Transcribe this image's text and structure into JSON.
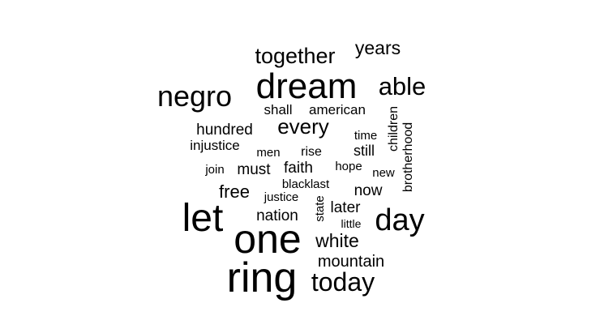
{
  "chart_data": {
    "type": "wordcloud",
    "color": "#000000",
    "words": [
      {
        "text": "ring",
        "weight": 52
      },
      {
        "text": "one",
        "weight": 50
      },
      {
        "text": "let",
        "weight": 48
      },
      {
        "text": "dream",
        "weight": 44
      },
      {
        "text": "day",
        "weight": 38
      },
      {
        "text": "negro",
        "weight": 36
      },
      {
        "text": "today",
        "weight": 32
      },
      {
        "text": "able",
        "weight": 31
      },
      {
        "text": "together",
        "weight": 27
      },
      {
        "text": "every",
        "weight": 26
      },
      {
        "text": "years",
        "weight": 23
      },
      {
        "text": "white",
        "weight": 23
      },
      {
        "text": "free",
        "weight": 22
      },
      {
        "text": "mountain",
        "weight": 20
      },
      {
        "text": "hundred",
        "weight": 19
      },
      {
        "text": "nation",
        "weight": 19
      },
      {
        "text": "must",
        "weight": 19
      },
      {
        "text": "faith",
        "weight": 19
      },
      {
        "text": "now",
        "weight": 19
      },
      {
        "text": "later",
        "weight": 19
      },
      {
        "text": "still",
        "weight": 18
      },
      {
        "text": "shall",
        "weight": 17
      },
      {
        "text": "american",
        "weight": 17
      },
      {
        "text": "injustice",
        "weight": 17
      },
      {
        "text": "brotherhood",
        "weight": 16
      },
      {
        "text": "children",
        "weight": 16
      },
      {
        "text": "rise",
        "weight": 16
      },
      {
        "text": "men",
        "weight": 15
      },
      {
        "text": "hope",
        "weight": 15
      },
      {
        "text": "new",
        "weight": 15
      },
      {
        "text": "blacklast",
        "weight": 15
      },
      {
        "text": "time",
        "weight": 15
      },
      {
        "text": "justice",
        "weight": 15
      },
      {
        "text": "join",
        "weight": 15
      },
      {
        "text": "state",
        "weight": 15
      },
      {
        "text": "little",
        "weight": 14
      }
    ]
  }
}
